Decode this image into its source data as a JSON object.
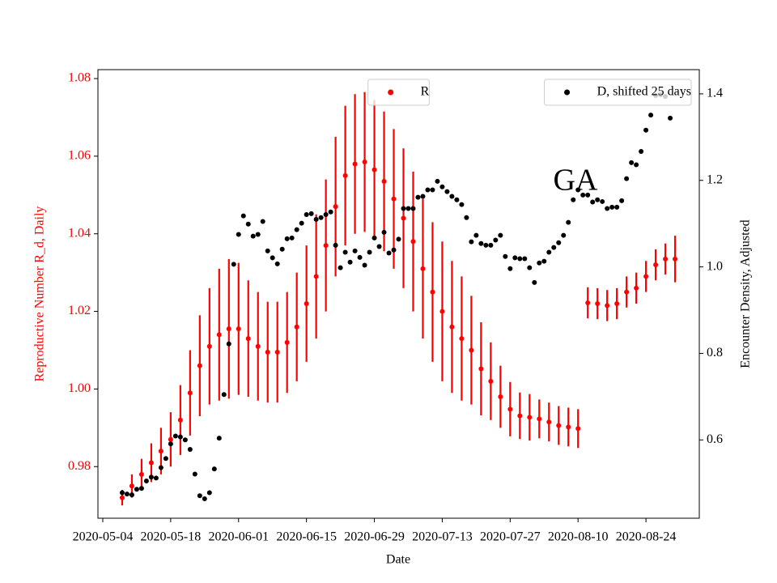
{
  "chart_data": {
    "type": "scatter",
    "annotation": "GA",
    "xlabel": "Date",
    "ylabel": "Reproductive Number R_d, Daily",
    "y2label": "Encounter Density, Adjusted",
    "xlim": [
      "2020-05-03",
      "2020-09-04"
    ],
    "xticks": [
      "2020-05-04",
      "2020-05-18",
      "2020-06-01",
      "2020-06-15",
      "2020-06-29",
      "2020-07-13",
      "2020-07-27",
      "2020-08-10",
      "2020-08-24"
    ],
    "ylim": [
      0.9667,
      1.0823
    ],
    "yticks": [
      {
        "value": 0.98,
        "label": "0.98"
      },
      {
        "value": 1.0,
        "label": "1.00"
      },
      1.02,
      1.04,
      1.06,
      1.08
    ],
    "y2lim": [
      0.419,
      1.456
    ],
    "y2ticks": [
      0.6,
      0.8,
      {
        "value": 1.0,
        "label": "1.0"
      },
      1.2,
      1.4
    ],
    "series": [
      {
        "name": "R",
        "color": "#ff0000",
        "axis": "y",
        "legend_loc": "upper center",
        "x": [
          "2020-05-08",
          "2020-05-10",
          "2020-05-12",
          "2020-05-14",
          "2020-05-16",
          "2020-05-18",
          "2020-05-20",
          "2020-05-22",
          "2020-05-24",
          "2020-05-26",
          "2020-05-28",
          "2020-05-30",
          "2020-06-01",
          "2020-06-03",
          "2020-06-05",
          "2020-06-07",
          "2020-06-09",
          "2020-06-11",
          "2020-06-13",
          "2020-06-15",
          "2020-06-17",
          "2020-06-19",
          "2020-06-21",
          "2020-06-23",
          "2020-06-25",
          "2020-06-27",
          "2020-06-29",
          "2020-07-01",
          "2020-07-03",
          "2020-07-05",
          "2020-07-07",
          "2020-07-09",
          "2020-07-11",
          "2020-07-13",
          "2020-07-15",
          "2020-07-17",
          "2020-07-19",
          "2020-07-21",
          "2020-07-23",
          "2020-07-25",
          "2020-07-27",
          "2020-07-29",
          "2020-07-31",
          "2020-08-02",
          "2020-08-04",
          "2020-08-06",
          "2020-08-08",
          "2020-08-10",
          "2020-08-12",
          "2020-08-14",
          "2020-08-16",
          "2020-08-18",
          "2020-08-20",
          "2020-08-22",
          "2020-08-24",
          "2020-08-26",
          "2020-08-28",
          "2020-08-30"
        ],
        "values": [
          0.972,
          0.975,
          0.978,
          0.981,
          0.984,
          0.987,
          0.992,
          0.999,
          1.006,
          1.011,
          1.014,
          1.0155,
          1.0155,
          1.013,
          1.011,
          1.0095,
          1.0095,
          1.012,
          1.016,
          1.022,
          1.029,
          1.037,
          1.047,
          1.055,
          1.058,
          1.0585,
          1.0565,
          1.0535,
          1.049,
          1.044,
          1.038,
          1.031,
          1.025,
          1.02,
          1.016,
          1.013,
          1.01,
          1.0052,
          1.002,
          0.998,
          0.9948,
          0.9931,
          0.9927,
          0.9923,
          0.9915,
          0.9906,
          0.9902,
          0.9898,
          1.0222,
          1.022,
          1.0215,
          1.022,
          1.025,
          1.026,
          1.029,
          1.032,
          1.0335,
          1.0335
        ],
        "errors": [
          0.002,
          0.003,
          0.004,
          0.005,
          0.006,
          0.007,
          0.009,
          0.011,
          0.013,
          0.015,
          0.017,
          0.018,
          0.017,
          0.015,
          0.014,
          0.013,
          0.013,
          0.013,
          0.014,
          0.015,
          0.016,
          0.017,
          0.018,
          0.018,
          0.018,
          0.018,
          0.018,
          0.018,
          0.018,
          0.018,
          0.018,
          0.018,
          0.018,
          0.018,
          0.017,
          0.016,
          0.014,
          0.012,
          0.01,
          0.008,
          0.007,
          0.006,
          0.006,
          0.005,
          0.005,
          0.005,
          0.005,
          0.005,
          0.004,
          0.004,
          0.004,
          0.004,
          0.004,
          0.004,
          0.004,
          0.004,
          0.004,
          0.006
        ]
      },
      {
        "name": "D, shifted 25 days",
        "color": "#000000",
        "axis": "y2",
        "legend_loc": "upper right",
        "x": [
          "2020-05-08",
          "2020-05-09",
          "2020-05-10",
          "2020-05-11",
          "2020-05-12",
          "2020-05-13",
          "2020-05-14",
          "2020-05-15",
          "2020-05-16",
          "2020-05-17",
          "2020-05-18",
          "2020-05-19",
          "2020-05-20",
          "2020-05-21",
          "2020-05-22",
          "2020-05-23",
          "2020-05-24",
          "2020-05-25",
          "2020-05-26",
          "2020-05-27",
          "2020-05-28",
          "2020-05-29",
          "2020-05-30",
          "2020-05-31",
          "2020-06-01",
          "2020-06-02",
          "2020-06-03",
          "2020-06-04",
          "2020-06-05",
          "2020-06-06",
          "2020-06-07",
          "2020-06-08",
          "2020-06-09",
          "2020-06-10",
          "2020-06-11",
          "2020-06-12",
          "2020-06-13",
          "2020-06-14",
          "2020-06-15",
          "2020-06-16",
          "2020-06-17",
          "2020-06-18",
          "2020-06-19",
          "2020-06-20",
          "2020-06-21",
          "2020-06-22",
          "2020-06-23",
          "2020-06-24",
          "2020-06-25",
          "2020-06-26",
          "2020-06-27",
          "2020-06-28",
          "2020-06-29",
          "2020-06-30",
          "2020-07-01",
          "2020-07-02",
          "2020-07-03",
          "2020-07-04",
          "2020-07-05",
          "2020-07-06",
          "2020-07-07",
          "2020-07-08",
          "2020-07-09",
          "2020-07-10",
          "2020-07-11",
          "2020-07-12",
          "2020-07-13",
          "2020-07-14",
          "2020-07-15",
          "2020-07-16",
          "2020-07-17",
          "2020-07-18",
          "2020-07-19",
          "2020-07-20",
          "2020-07-21",
          "2020-07-22",
          "2020-07-23",
          "2020-07-24",
          "2020-07-25",
          "2020-07-26",
          "2020-07-27",
          "2020-07-28",
          "2020-07-29",
          "2020-07-30",
          "2020-07-31",
          "2020-08-01",
          "2020-08-02",
          "2020-08-03",
          "2020-08-04",
          "2020-08-05",
          "2020-08-06",
          "2020-08-07",
          "2020-08-08",
          "2020-08-09",
          "2020-08-10",
          "2020-08-11",
          "2020-08-12",
          "2020-08-13",
          "2020-08-14",
          "2020-08-15",
          "2020-08-16",
          "2020-08-17",
          "2020-08-18",
          "2020-08-19",
          "2020-08-20",
          "2020-08-21",
          "2020-08-22",
          "2020-08-23",
          "2020-08-24",
          "2020-08-25",
          "2020-08-26",
          "2020-08-27",
          "2020-08-28",
          "2020-08-29"
        ],
        "values": [
          0.478,
          0.475,
          0.473,
          0.486,
          0.488,
          0.505,
          0.514,
          0.512,
          0.536,
          0.557,
          0.591,
          0.609,
          0.607,
          0.6,
          0.578,
          0.521,
          0.471,
          0.464,
          0.478,
          0.533,
          0.604,
          0.705,
          0.822,
          1.006,
          1.075,
          1.118,
          1.099,
          1.071,
          1.075,
          1.105,
          1.037,
          1.021,
          1.007,
          1.041,
          1.065,
          1.067,
          1.086,
          1.101,
          1.121,
          1.123,
          1.11,
          1.114,
          1.121,
          1.127,
          1.05,
          0.998,
          1.034,
          1.011,
          1.037,
          1.022,
          1.004,
          1.034,
          1.067,
          1.047,
          1.08,
          1.032,
          1.039,
          1.064,
          1.135,
          1.135,
          1.135,
          1.161,
          1.163,
          1.178,
          1.178,
          1.198,
          1.185,
          1.174,
          1.163,
          1.155,
          1.144,
          1.114,
          1.058,
          1.073,
          1.054,
          1.05,
          1.05,
          1.062,
          1.073,
          1.024,
          0.996,
          1.021,
          1.019,
          1.019,
          0.998,
          0.964,
          1.009,
          1.013,
          1.034,
          1.045,
          1.056,
          1.073,
          1.103,
          1.155,
          1.178,
          1.166,
          1.166,
          1.15,
          1.155,
          1.151,
          1.135,
          1.138,
          1.138,
          1.153,
          1.204,
          1.241,
          1.236,
          1.267,
          1.316,
          1.351,
          1.396,
          1.398,
          1.394,
          1.344
        ]
      }
    ]
  }
}
